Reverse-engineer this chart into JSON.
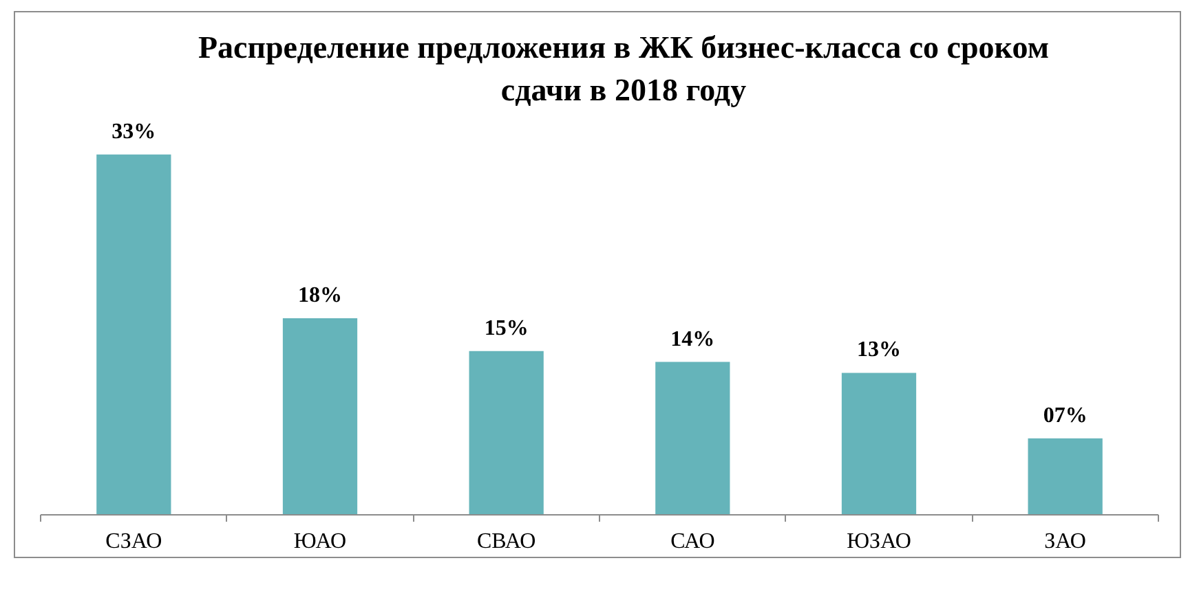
{
  "chart_data": {
    "type": "bar",
    "title": "Распределение предложения в ЖК бизнес-класса со сроком сдачи в 2018 году",
    "categories": [
      "СЗАО",
      "ЮАО",
      "СВАО",
      "САО",
      "ЮЗАО",
      "ЗАО"
    ],
    "values": [
      33,
      18,
      15,
      14,
      13,
      7
    ],
    "value_labels": [
      "33%",
      "18%",
      "15%",
      "14%",
      "13%",
      "07%"
    ],
    "color": "#65b4ba"
  }
}
